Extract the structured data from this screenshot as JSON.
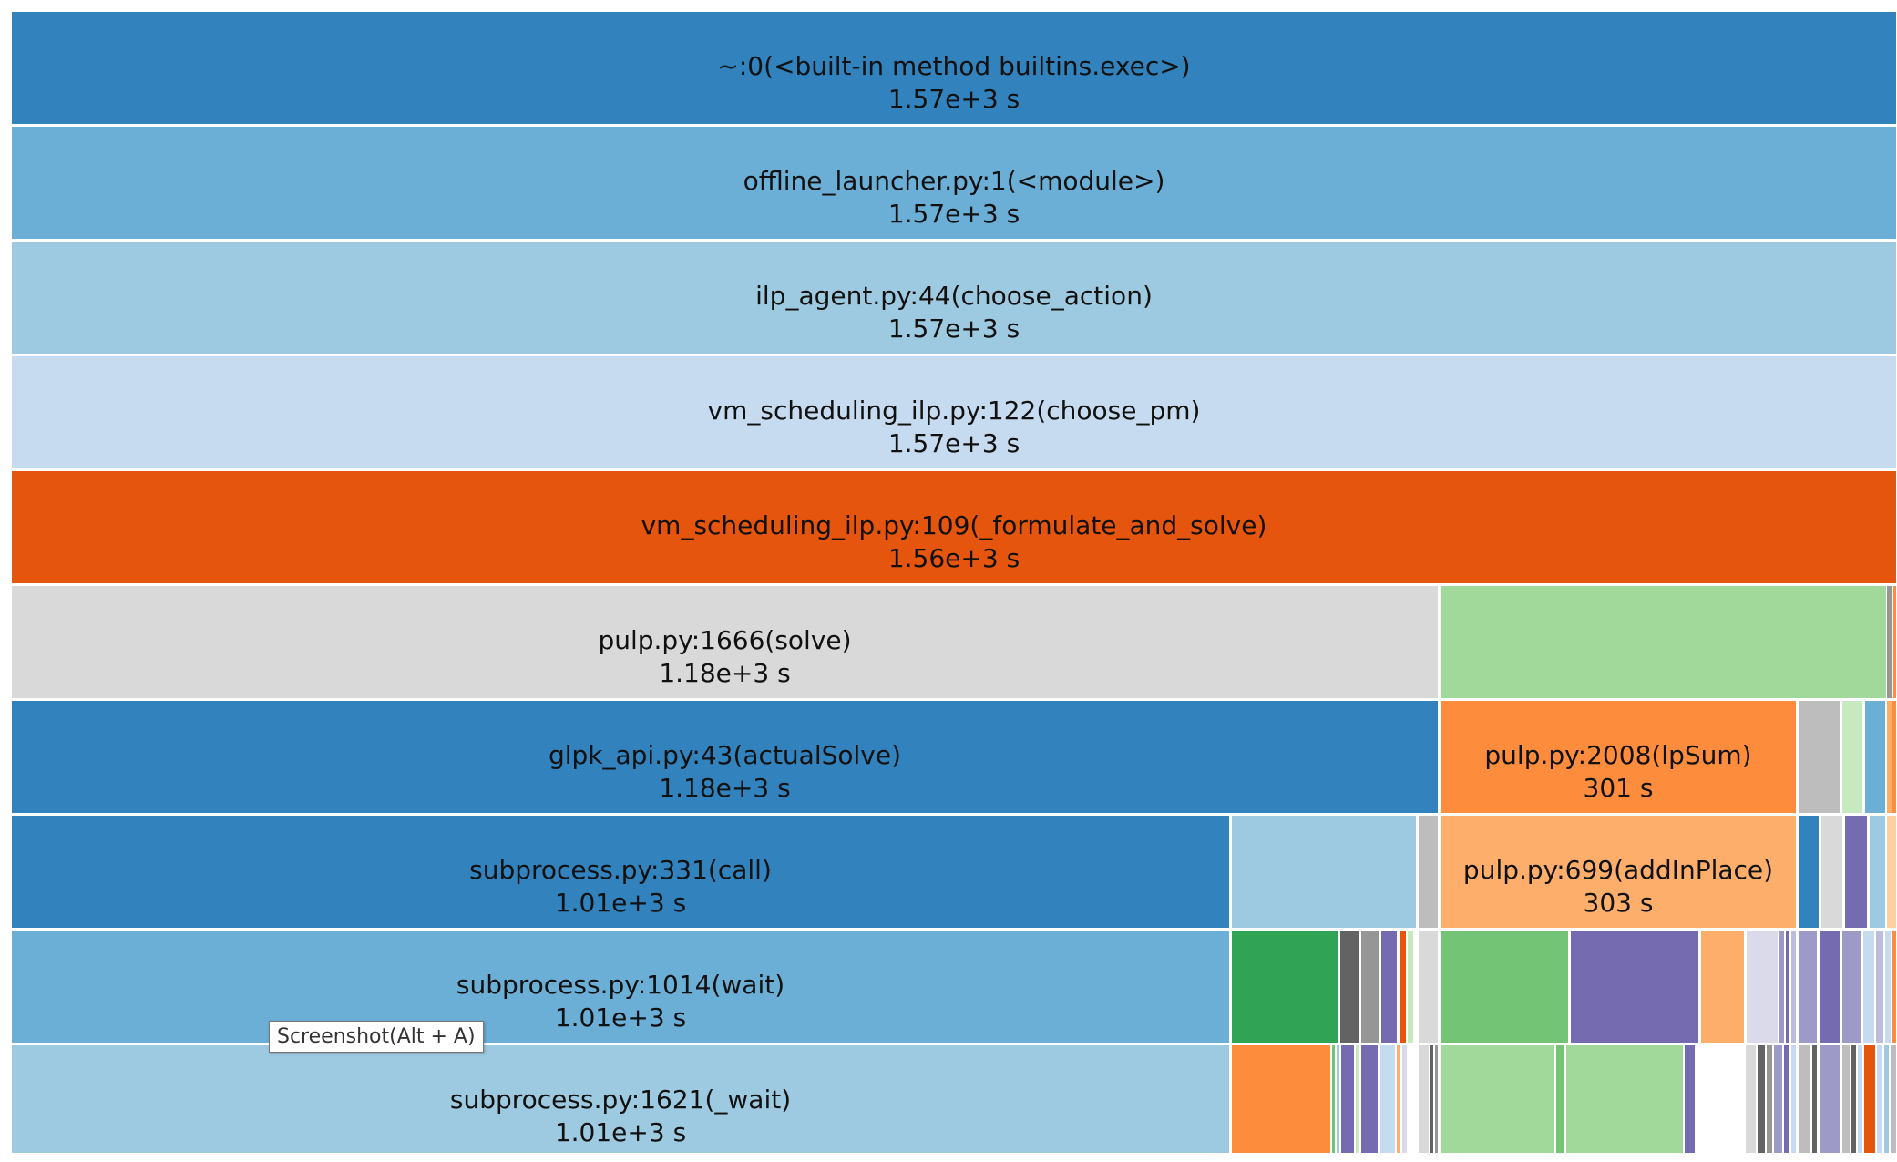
{
  "tooltip": {
    "text": "Screenshot(Alt + A)"
  },
  "blocks": [
    {
      "label": "~:0(<built-in method builtins.exec>)",
      "value": "1.57e+3 s",
      "color": "#3182bd"
    },
    {
      "label": "offline_launcher.py:1(<module>)",
      "value": "1.57e+3 s",
      "color": "#6baed6"
    },
    {
      "label": "ilp_agent.py:44(choose_action)",
      "value": "1.57e+3 s",
      "color": "#9ecae1"
    },
    {
      "label": "vm_scheduling_ilp.py:122(choose_pm)",
      "value": "1.57e+3 s",
      "color": "#c6dbef"
    },
    {
      "label": "vm_scheduling_ilp.py:109(_formulate_and_solve)",
      "value": "1.56e+3 s",
      "color": "#e6550d"
    },
    {
      "label": "pulp.py:1666(solve)",
      "value": "1.18e+3 s",
      "color": "#d9d9d9"
    },
    {
      "label": "glpk_api.py:43(actualSolve)",
      "value": "1.18e+3 s",
      "color": "#3182bd"
    },
    {
      "label": "subprocess.py:331(call)",
      "value": "1.01e+3 s",
      "color": "#3182bd"
    },
    {
      "label": "subprocess.py:1014(wait)",
      "value": "1.01e+3 s",
      "color": "#6baed6"
    },
    {
      "label": "subprocess.py:1621(_wait)",
      "value": "1.01e+3 s",
      "color": "#9ecae1"
    },
    {
      "label": "pulp.py:2008(lpSum)",
      "value": "301 s",
      "color": "#fd8d3c"
    },
    {
      "label": "pulp.py:699(addInPlace)",
      "value": "303 s",
      "color": "#fdae6b"
    }
  ]
}
